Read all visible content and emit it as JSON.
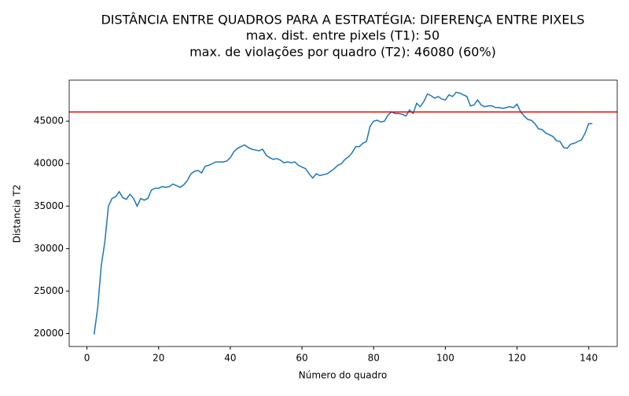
{
  "chart_data": {
    "type": "line",
    "title": [
      "DISTÂNCIA ENTRE QUADROS PARA A ESTRATÉGIA: DIFERENÇA ENTRE PIXELS",
      "max. dist. entre pixels (T1): 50",
      "max. de violações por quadro (T2): 46080 (60%)"
    ],
    "x_label": "Número do quadro",
    "y_label": "Distancia T2",
    "x": [
      2,
      3,
      4,
      5,
      6,
      7,
      8,
      9,
      10,
      11,
      12,
      13,
      14,
      15,
      16,
      17,
      18,
      19,
      20,
      21,
      22,
      23,
      24,
      25,
      26,
      27,
      28,
      29,
      30,
      31,
      32,
      33,
      34,
      35,
      36,
      37,
      38,
      39,
      40,
      41,
      42,
      43,
      44,
      45,
      46,
      47,
      48,
      49,
      50,
      51,
      52,
      53,
      54,
      55,
      56,
      57,
      58,
      59,
      60,
      61,
      62,
      63,
      64,
      65,
      66,
      67,
      68,
      69,
      70,
      71,
      72,
      73,
      74,
      75,
      76,
      77,
      78,
      79,
      80,
      81,
      82,
      83,
      84,
      85,
      86,
      87,
      88,
      89,
      90,
      91,
      92,
      93,
      94,
      95,
      96,
      97,
      98,
      99,
      100,
      101,
      102,
      103,
      104,
      105,
      106,
      107,
      108,
      109,
      110,
      111,
      112,
      113,
      114,
      115,
      116,
      117,
      118,
      119,
      120,
      121,
      122,
      123,
      124,
      125,
      126,
      127,
      128,
      129,
      130,
      131,
      132,
      133,
      134,
      135,
      136,
      137,
      138,
      139,
      140,
      141
    ],
    "series": [
      {
        "color": "#1f77b4",
        "values": [
          19900,
          23000,
          28000,
          30800,
          35000,
          35900,
          36100,
          36700,
          36000,
          35800,
          36400,
          35900,
          35000,
          35900,
          35700,
          35900,
          36900,
          37100,
          37100,
          37300,
          37200,
          37300,
          37600,
          37400,
          37200,
          37500,
          38000,
          38800,
          39100,
          39200,
          38900,
          39700,
          39800,
          40000,
          40200,
          40200,
          40200,
          40300,
          40700,
          41400,
          41800,
          42000,
          42200,
          41900,
          41700,
          41600,
          41500,
          41700,
          41000,
          40700,
          40500,
          40600,
          40400,
          40100,
          40200,
          40100,
          40200,
          39800,
          39600,
          39400,
          38800,
          38300,
          38800,
          38600,
          38700,
          38800,
          39100,
          39400,
          39800,
          40000,
          40500,
          40800,
          41300,
          42000,
          42000,
          42400,
          42600,
          44400,
          45000,
          45100,
          44900,
          45000,
          45700,
          46100,
          45900,
          45900,
          45800,
          45600,
          46300,
          45900,
          47100,
          46700,
          47300,
          48200,
          48000,
          47700,
          47900,
          47600,
          47500,
          48100,
          47900,
          48400,
          48300,
          48100,
          47900,
          46800,
          46900,
          47500,
          46900,
          46700,
          46800,
          46800,
          46600,
          46600,
          46500,
          46600,
          46700,
          46600,
          47000,
          46100,
          45600,
          45200,
          45100,
          44700,
          44100,
          44000,
          43600,
          43400,
          43200,
          42700,
          42600,
          41900,
          41800,
          42300,
          42400,
          42600,
          42800,
          43600,
          44700,
          44700
        ]
      }
    ],
    "threshold": {
      "value": 46080,
      "color": "#e00000"
    },
    "xlim": [
      -4.95,
      147.95
    ],
    "ylim": [
      18475,
      49825
    ],
    "xticks": [
      0,
      20,
      40,
      60,
      80,
      100,
      120,
      140
    ],
    "yticks": [
      20000,
      25000,
      30000,
      35000,
      40000,
      45000
    ]
  }
}
